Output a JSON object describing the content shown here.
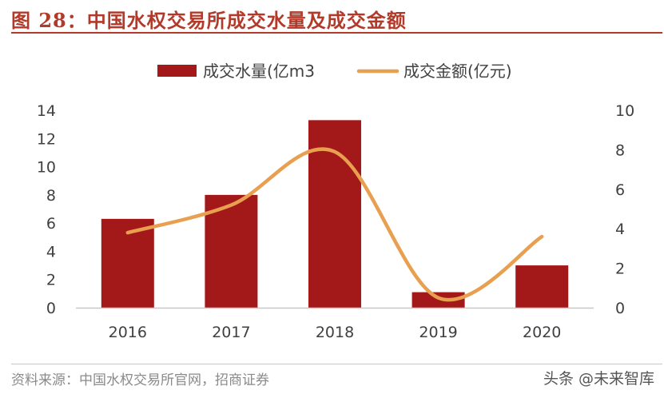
{
  "figure": {
    "title": "图 28：中国水权交易所成交水量及成交金额",
    "source": "资料来源：中国水权交易所官网，招商证券",
    "watermark": "头条 @未来智库"
  },
  "colors": {
    "bar": "#a31919",
    "line": "#e8a050",
    "title": "#b23a2a",
    "axis_text": "#404040"
  },
  "chart_data": {
    "type": "bar",
    "categories": [
      "2016",
      "2017",
      "2018",
      "2019",
      "2020"
    ],
    "series": [
      {
        "name": "成交水量(亿m3",
        "type": "bar",
        "axis": "left",
        "values": [
          6.3,
          8.0,
          13.3,
          1.1,
          3.0
        ]
      },
      {
        "name": "成交金额(亿元)",
        "type": "line",
        "axis": "right",
        "smooth": true,
        "values": [
          3.8,
          5.2,
          7.9,
          0.5,
          3.6
        ]
      }
    ],
    "ylim": [
      0,
      14
    ],
    "y_ticks": [
      "0",
      "2",
      "4",
      "6",
      "8",
      "10",
      "12",
      "14"
    ],
    "y2lim": [
      0,
      10
    ],
    "y2_ticks": [
      "0",
      "2",
      "4",
      "6",
      "8",
      "10"
    ],
    "legend_position": "top-center",
    "grid": false
  }
}
